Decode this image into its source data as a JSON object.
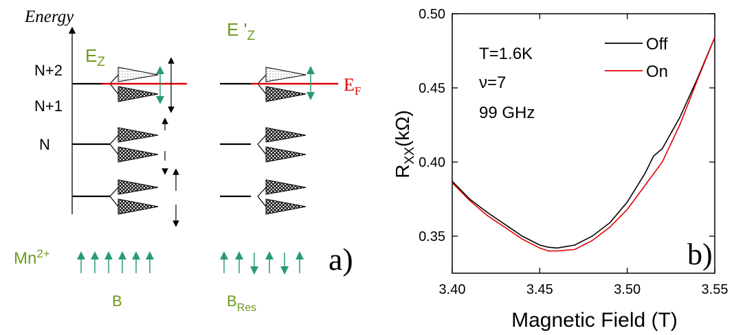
{
  "diagram": {
    "axis_label": "Energy",
    "levels": [
      "N+2",
      "N+1",
      "N"
    ],
    "zeeman_left": {
      "main": "E",
      "sub": "Z"
    },
    "zeeman_right": {
      "main": "E '",
      "sub": "Z"
    },
    "fermi": {
      "main": "E",
      "sub": "F"
    },
    "ion": {
      "main": "Mn",
      "sup": "2+"
    },
    "field_left": "B",
    "field_right": {
      "main": "B",
      "sub": "Res"
    },
    "panel_label": "a)"
  },
  "chart_data": {
    "type": "line",
    "x_label": "Magnetic Field (T)",
    "y_label": {
      "main": "R",
      "sub": "XX",
      "unit": "(kΩ)"
    },
    "annotations": [
      "T=1.6K",
      "ν=7",
      "99 GHz"
    ],
    "panel_label": "b)",
    "x": [
      3.4,
      3.41,
      3.42,
      3.43,
      3.44,
      3.45,
      3.455,
      3.46,
      3.47,
      3.48,
      3.49,
      3.5,
      3.51,
      3.515,
      3.52,
      3.53,
      3.54,
      3.55
    ],
    "series": [
      {
        "name": "Off",
        "color": "#000000",
        "values": [
          0.387,
          0.375,
          0.366,
          0.358,
          0.35,
          0.344,
          0.3425,
          0.342,
          0.344,
          0.35,
          0.359,
          0.373,
          0.392,
          0.404,
          0.409,
          0.43,
          0.456,
          0.484
        ]
      },
      {
        "name": "On",
        "color": "#e00000",
        "values": [
          0.386,
          0.374,
          0.364,
          0.356,
          0.348,
          0.342,
          0.34,
          0.34,
          0.341,
          0.347,
          0.356,
          0.368,
          0.384,
          0.392,
          0.4,
          0.425,
          0.455,
          0.484
        ]
      }
    ],
    "xlim": [
      3.4,
      3.55
    ],
    "ylim": [
      0.325,
      0.5
    ],
    "xticks": [
      {
        "value": 3.4,
        "label": "3.40"
      },
      3.45,
      {
        "value": 3.5,
        "label": "3.50"
      },
      3.55
    ],
    "yticks": [
      0.35,
      {
        "value": 0.4,
        "label": "0.40"
      },
      0.45,
      {
        "value": 0.5,
        "label": "0.50"
      }
    ],
    "legend": "top-right"
  }
}
